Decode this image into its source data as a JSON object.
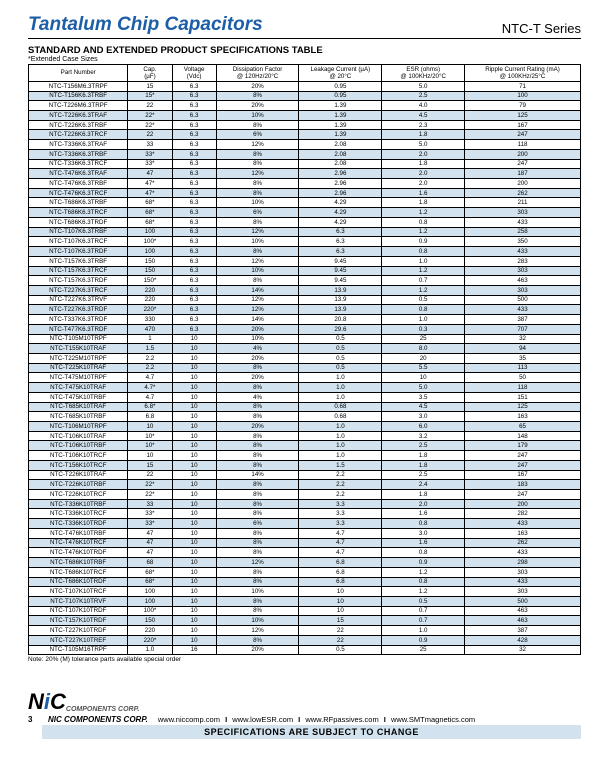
{
  "header": {
    "title": "Tantalum Chip Capacitors",
    "series": "NTC-T Series",
    "subtitle": "STANDARD AND EXTENDED PRODUCT SPECIFICATIONS TABLE",
    "ext_note": "*Extended Case Sizes"
  },
  "table": {
    "columns": [
      {
        "l1": "Part Number",
        "l2": ""
      },
      {
        "l1": "Cap.",
        "l2": "(µF)"
      },
      {
        "l1": "Voltage",
        "l2": "(Vdc)"
      },
      {
        "l1": "Dissipation Factor",
        "l2": "@ 120Hz/20°C"
      },
      {
        "l1": "Leakage Current (µA)",
        "l2": "@ 20°C"
      },
      {
        "l1": "ESR (ohms)",
        "l2": "@ 100KHz/20°C"
      },
      {
        "l1": "Ripple Current Rating (mA)",
        "l2": "@ 100KHz/25°C"
      }
    ],
    "rows": [
      [
        "NTC-T156M6.3TRPF",
        "15",
        "6.3",
        "20%",
        "0.95",
        "5.0",
        "71"
      ],
      [
        "NTC-T156K6.3TRBF",
        "15*",
        "6.3",
        "8%",
        "0.95",
        "2.5",
        "100"
      ],
      [
        "NTC-T226M6.3TRPF",
        "22",
        "6.3",
        "20%",
        "1.39",
        "4.0",
        "79"
      ],
      [
        "NTC-T226K6.3TRAF",
        "22*",
        "6.3",
        "10%",
        "1.39",
        "4.5",
        "125"
      ],
      [
        "NTC-T226K6.3TRBF",
        "22*",
        "6.3",
        "8%",
        "1.39",
        "2.3",
        "167"
      ],
      [
        "NTC-T226K6.3TRCF",
        "22",
        "6.3",
        "6%",
        "1.39",
        "1.8",
        "247"
      ],
      [
        "NTC-T336K6.3TRAF",
        "33",
        "6.3",
        "12%",
        "2.08",
        "5.0",
        "118"
      ],
      [
        "NTC-T336K6.3TRBF",
        "33*",
        "6.3",
        "8%",
        "2.08",
        "2.0",
        "200"
      ],
      [
        "NTC-T336K6.3TRCF",
        "33*",
        "6.3",
        "8%",
        "2.08",
        "1.8",
        "247"
      ],
      [
        "NTC-T476K6.3TRAF",
        "47",
        "6.3",
        "12%",
        "2.96",
        "2.0",
        "187"
      ],
      [
        "NTC-T476K6.3TRBF",
        "47*",
        "6.3",
        "8%",
        "2.96",
        "2.0",
        "200"
      ],
      [
        "NTC-T476K6.3TRCF",
        "47*",
        "6.3",
        "8%",
        "2.96",
        "1.6",
        "262"
      ],
      [
        "NTC-T686K6.3TRBF",
        "68*",
        "6.3",
        "10%",
        "4.29",
        "1.8",
        "211"
      ],
      [
        "NTC-T686K6.3TRCF",
        "68*",
        "6.3",
        "6%",
        "4.29",
        "1.2",
        "303"
      ],
      [
        "NTC-T686K6.3TRDF",
        "68*",
        "6.3",
        "8%",
        "4.29",
        "0.8",
        "433"
      ],
      [
        "NTC-T107K6.3TRBF",
        "100",
        "6.3",
        "12%",
        "6.3",
        "1.2",
        "258"
      ],
      [
        "NTC-T107K6.3TRCF",
        "100*",
        "6.3",
        "10%",
        "6.3",
        "0.9",
        "350"
      ],
      [
        "NTC-T107K6.3TRDF",
        "100",
        "6.3",
        "8%",
        "6.3",
        "0.8",
        "433"
      ],
      [
        "NTC-T157K6.3TRBF",
        "150",
        "6.3",
        "12%",
        "9.45",
        "1.0",
        "283"
      ],
      [
        "NTC-T157K6.3TRCF",
        "150",
        "6.3",
        "10%",
        "9.45",
        "1.2",
        "303"
      ],
      [
        "NTC-T157K6.3TRDF",
        "150*",
        "6.3",
        "8%",
        "9.45",
        "0.7",
        "463"
      ],
      [
        "NTC-T227K6.3TRCF",
        "220",
        "6.3",
        "14%",
        "13.9",
        "1.2",
        "303"
      ],
      [
        "NTC-T227K6.3TRVF",
        "220",
        "6.3",
        "12%",
        "13.9",
        "0.5",
        "500"
      ],
      [
        "NTC-T227K6.3TRDF",
        "220*",
        "6.3",
        "12%",
        "13.9",
        "0.8",
        "433"
      ],
      [
        "NTC-T337K6.3TRDF",
        "330",
        "6.3",
        "14%",
        "20.8",
        "1.0",
        "387"
      ],
      [
        "NTC-T477K6.3TRDF",
        "470",
        "6.3",
        "20%",
        "29.6",
        "0.3",
        "707"
      ],
      [
        "NTC-T105M10TRPF",
        "1",
        "10",
        "10%",
        "0.5",
        "25",
        "32"
      ],
      [
        "NTC-T155K10TRAF",
        "1.5",
        "10",
        "4%",
        "0.5",
        "8.0",
        "94"
      ],
      [
        "NTC-T225M10TRPF",
        "2.2",
        "10",
        "20%",
        "0.5",
        "20",
        "35"
      ],
      [
        "NTC-T225K10TRAF",
        "2.2",
        "10",
        "8%",
        "0.5",
        "5.5",
        "113"
      ],
      [
        "NTC-T475M10TRPF",
        "4.7",
        "10",
        "20%",
        "1.0",
        "10",
        "50"
      ],
      [
        "NTC-T475K10TRAF",
        "4.7*",
        "10",
        "8%",
        "1.0",
        "5.0",
        "118"
      ],
      [
        "NTC-T475K10TRBF",
        "4.7",
        "10",
        "4%",
        "1.0",
        "3.5",
        "151"
      ],
      [
        "NTC-T685K10TRAF",
        "6.8*",
        "10",
        "8%",
        "0.68",
        "4.5",
        "125"
      ],
      [
        "NTC-T685K10TRBF",
        "6.8",
        "10",
        "8%",
        "0.68",
        "3.0",
        "163"
      ],
      [
        "NTC-T106M10TRPF",
        "10",
        "10",
        "20%",
        "1.0",
        "6.0",
        "65"
      ],
      [
        "NTC-T106K10TRAF",
        "10*",
        "10",
        "8%",
        "1.0",
        "3.2",
        "148"
      ],
      [
        "NTC-T106K10TRBF",
        "10*",
        "10",
        "8%",
        "1.0",
        "2.5",
        "179"
      ],
      [
        "NTC-T106K10TRCF",
        "10",
        "10",
        "8%",
        "1.0",
        "1.8",
        "247"
      ],
      [
        "NTC-T156K10TRCF",
        "15",
        "10",
        "8%",
        "1.5",
        "1.8",
        "247"
      ],
      [
        "NTC-T226K10TRAF",
        "22",
        "10",
        "14%",
        "2.2",
        "2.5",
        "167"
      ],
      [
        "NTC-T226K10TRBF",
        "22*",
        "10",
        "8%",
        "2.2",
        "2.4",
        "183"
      ],
      [
        "NTC-T226K10TRCF",
        "22*",
        "10",
        "8%",
        "2.2",
        "1.8",
        "247"
      ],
      [
        "NTC-T336K10TRBF",
        "33",
        "10",
        "8%",
        "3.3",
        "2.0",
        "200"
      ],
      [
        "NTC-T336K10TRCF",
        "33*",
        "10",
        "8%",
        "3.3",
        "1.6",
        "282"
      ],
      [
        "NTC-T336K10TRDF",
        "33*",
        "10",
        "6%",
        "3.3",
        "0.8",
        "433"
      ],
      [
        "NTC-T476K10TRBF",
        "47",
        "10",
        "8%",
        "4.7",
        "3.0",
        "163"
      ],
      [
        "NTC-T476K10TRCF",
        "47",
        "10",
        "8%",
        "4.7",
        "1.6",
        "262"
      ],
      [
        "NTC-T476K10TRDF",
        "47",
        "10",
        "8%",
        "4.7",
        "0.8",
        "433"
      ],
      [
        "NTC-T686K10TRBF",
        "68",
        "10",
        "12%",
        "6.8",
        "0.9",
        "298"
      ],
      [
        "NTC-T686K10TRCF",
        "68*",
        "10",
        "8%",
        "6.8",
        "1.2",
        "303"
      ],
      [
        "NTC-T686K10TRDF",
        "68*",
        "10",
        "8%",
        "6.8",
        "0.8",
        "433"
      ],
      [
        "NTC-T107K10TRCF",
        "100",
        "10",
        "10%",
        "10",
        "1.2",
        "303"
      ],
      [
        "NTC-T107K10TRVF",
        "100",
        "10",
        "8%",
        "10",
        "0.5",
        "500"
      ],
      [
        "NTC-T107K10TRDF",
        "100*",
        "10",
        "8%",
        "10",
        "0.7",
        "463"
      ],
      [
        "NTC-T157K10TRDF",
        "150",
        "10",
        "10%",
        "15",
        "0.7",
        "463"
      ],
      [
        "NTC-T227K10TRDF",
        "220",
        "10",
        "12%",
        "22",
        "1.0",
        "387"
      ],
      [
        "NTC-T227K10TREF",
        "220*",
        "10",
        "8%",
        "22",
        "0.9",
        "428"
      ],
      [
        "NTC-T105M16TRPF",
        "1.0",
        "16",
        "20%",
        "0.5",
        "25",
        "32"
      ]
    ],
    "alt_color": "#d2e3ef",
    "note": "Note: 20% (M) tolerance parts available special order"
  },
  "footer": {
    "page": "3",
    "corp": "NIC COMPONENTS CORP.",
    "links": [
      "www.niccomp.com",
      "www.lowESR.com",
      "www.RFpassives.com",
      "www.SMTmagnetics.com"
    ],
    "change": "SPECIFICATIONS ARE SUBJECT TO CHANGE"
  }
}
